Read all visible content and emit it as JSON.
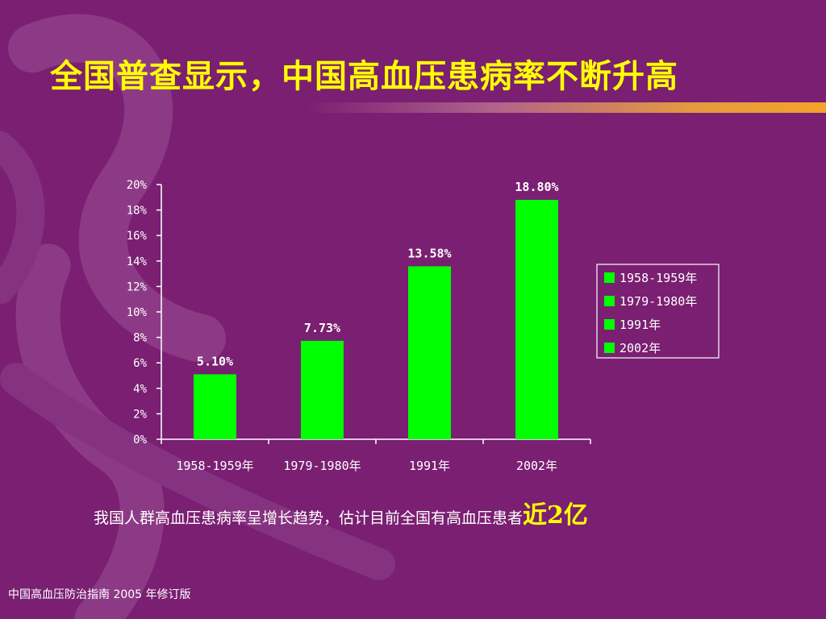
{
  "slide": {
    "title": "全国普查显示，中国高血压患病率不断升高",
    "note_text": "我国人群高血压患病率呈增长趋势，估计目前全国有高血压患者",
    "note_highlight": "近2亿",
    "source": "中国高血压防治指南  2005 年修订版",
    "colors": {
      "background": "#7a1f72",
      "title": "#ffff00",
      "bar": "#00ff00",
      "text": "#ffffff"
    }
  },
  "chart_data": {
    "type": "bar",
    "title": "",
    "xlabel": "",
    "ylabel": "",
    "categories": [
      "1958-1959年",
      "1979-1980年",
      "1991年",
      "2002年"
    ],
    "values": [
      5.1,
      7.73,
      13.58,
      18.8
    ],
    "value_labels": [
      "5.10%",
      "7.73%",
      "13.58%",
      "18.80%"
    ],
    "ylim": [
      0,
      20
    ],
    "y_ticks": [
      "0%",
      "2%",
      "4%",
      "6%",
      "8%",
      "10%",
      "12%",
      "14%",
      "16%",
      "18%",
      "20%"
    ],
    "grid": false,
    "legend": {
      "placement": "right",
      "entries": [
        "1958-1959年",
        "1979-1980年",
        "1991年",
        "2002年"
      ]
    }
  }
}
